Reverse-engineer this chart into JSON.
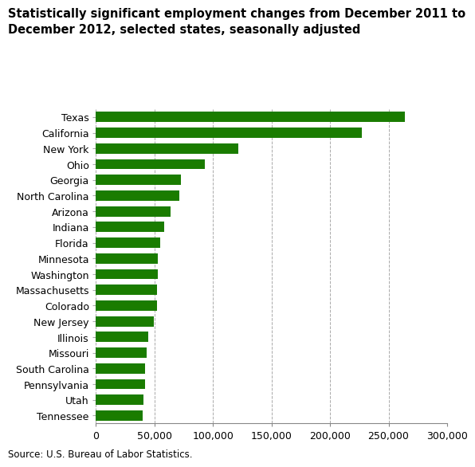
{
  "title_line1": "Statistically significant employment changes from December 2011 to",
  "title_line2": "December 2012, selected states, seasonally adjusted",
  "states": [
    "Texas",
    "California",
    "New York",
    "Ohio",
    "Georgia",
    "North Carolina",
    "Arizona",
    "Indiana",
    "Florida",
    "Minnesota",
    "Washington",
    "Massachusetts",
    "Colorado",
    "New Jersey",
    "Illinois",
    "Missouri",
    "South Carolina",
    "Pennsylvania",
    "Utah",
    "Tennessee"
  ],
  "values": [
    263700,
    226900,
    121900,
    93100,
    72500,
    71200,
    63800,
    58300,
    55100,
    53200,
    52800,
    52500,
    52000,
    49500,
    44900,
    43700,
    42300,
    42000,
    40500,
    39800
  ],
  "bar_color": "#1a7c00",
  "background_color": "#ffffff",
  "xlim": [
    0,
    300000
  ],
  "xticks": [
    0,
    50000,
    100000,
    150000,
    200000,
    250000,
    300000
  ],
  "source": "Source: U.S. Bureau of Labor Statistics.",
  "title_fontsize": 10.5,
  "tick_fontsize": 9,
  "source_fontsize": 8.5
}
